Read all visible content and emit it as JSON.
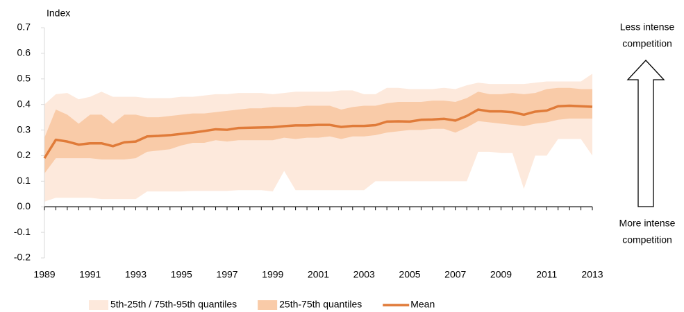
{
  "chart_data": {
    "type": "band-line",
    "y_label": "Index",
    "annotation_top": [
      "Less intense",
      "competition"
    ],
    "annotation_bottom": [
      "More intense",
      "competition"
    ],
    "categories": [
      "1989",
      null,
      null,
      null,
      "1991",
      null,
      null,
      null,
      "1993",
      null,
      null,
      null,
      "1995",
      null,
      null,
      null,
      "1997",
      null,
      null,
      null,
      "1999",
      null,
      null,
      null,
      "2001",
      null,
      null,
      null,
      "2003",
      null,
      null,
      null,
      "2005",
      null,
      null,
      null,
      "2007",
      null,
      null,
      null,
      "2009",
      null,
      null,
      null,
      "2011",
      null,
      null,
      null,
      "2013"
    ],
    "ylim": [
      -0.2,
      0.7
    ],
    "yticks": [
      -0.2,
      -0.1,
      {
        "value": 0,
        "label": "0.0"
      },
      0.1,
      0.2,
      0.3,
      0.4,
      0.5,
      0.6,
      0.7
    ],
    "grid": false,
    "bands": [
      {
        "name": "5th-25th / 75th-95th quantiles",
        "color": "#fde9dc",
        "lower": [
          0.02,
          0.035,
          0.035,
          0.035,
          0.035,
          0.03,
          0.03,
          0.03,
          0.03,
          0.06,
          0.06,
          0.06,
          0.06,
          0.062,
          0.062,
          0.062,
          0.062,
          0.065,
          0.065,
          0.065,
          0.06,
          0.14,
          0.065,
          0.065,
          0.065,
          0.065,
          0.065,
          0.065,
          0.065,
          0.1,
          0.1,
          0.1,
          0.1,
          0.1,
          0.1,
          0.1,
          0.1,
          0.1,
          0.215,
          0.215,
          0.21,
          0.21,
          0.07,
          0.2,
          0.2,
          0.265,
          0.265,
          0.265,
          0.2
        ],
        "upper": [
          0.4,
          0.44,
          0.445,
          0.42,
          0.43,
          0.45,
          0.43,
          0.43,
          0.43,
          0.425,
          0.425,
          0.425,
          0.43,
          0.43,
          0.435,
          0.44,
          0.44,
          0.445,
          0.445,
          0.445,
          0.44,
          0.445,
          0.45,
          0.45,
          0.45,
          0.45,
          0.455,
          0.455,
          0.44,
          0.44,
          0.465,
          0.465,
          0.46,
          0.46,
          0.46,
          0.465,
          0.46,
          0.475,
          0.485,
          0.48,
          0.48,
          0.48,
          0.48,
          0.485,
          0.49,
          0.49,
          0.49,
          0.49,
          0.52
        ]
      },
      {
        "name": "25th-75th quantiles",
        "color": "#f9cba8",
        "lower": [
          0.13,
          0.19,
          0.19,
          0.19,
          0.19,
          0.185,
          0.185,
          0.185,
          0.19,
          0.215,
          0.22,
          0.225,
          0.24,
          0.25,
          0.25,
          0.26,
          0.255,
          0.26,
          0.26,
          0.26,
          0.26,
          0.27,
          0.265,
          0.27,
          0.27,
          0.275,
          0.265,
          0.275,
          0.275,
          0.28,
          0.29,
          0.295,
          0.3,
          0.3,
          0.305,
          0.305,
          0.29,
          0.31,
          0.335,
          0.33,
          0.325,
          0.32,
          0.315,
          0.325,
          0.33,
          0.34,
          0.345,
          0.345,
          0.345
        ],
        "upper": [
          0.27,
          0.38,
          0.36,
          0.325,
          0.36,
          0.36,
          0.325,
          0.36,
          0.36,
          0.35,
          0.35,
          0.355,
          0.36,
          0.365,
          0.365,
          0.37,
          0.375,
          0.38,
          0.385,
          0.385,
          0.39,
          0.39,
          0.39,
          0.395,
          0.395,
          0.395,
          0.38,
          0.39,
          0.395,
          0.395,
          0.405,
          0.41,
          0.41,
          0.41,
          0.415,
          0.415,
          0.41,
          0.425,
          0.45,
          0.44,
          0.44,
          0.445,
          0.44,
          0.445,
          0.46,
          0.465,
          0.465,
          0.46,
          0.46
        ]
      }
    ],
    "series": [
      {
        "name": "Mean",
        "color": "#e07b39",
        "values": [
          0.19,
          0.262,
          0.255,
          0.243,
          0.248,
          0.248,
          0.237,
          0.252,
          0.255,
          0.275,
          0.277,
          0.28,
          0.285,
          0.29,
          0.296,
          0.303,
          0.301,
          0.308,
          0.309,
          0.31,
          0.311,
          0.315,
          0.318,
          0.318,
          0.32,
          0.32,
          0.312,
          0.316,
          0.316,
          0.319,
          0.333,
          0.334,
          0.333,
          0.34,
          0.341,
          0.344,
          0.337,
          0.355,
          0.38,
          0.373,
          0.373,
          0.37,
          0.36,
          0.372,
          0.376,
          0.393,
          0.395,
          0.393,
          0.391
        ]
      }
    ]
  }
}
